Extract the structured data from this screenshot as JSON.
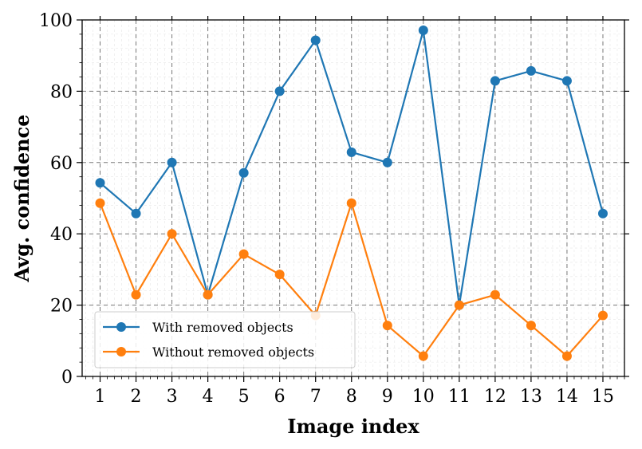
{
  "chart_data": {
    "type": "line",
    "xlabel": "Image index",
    "ylabel": "Avg. confidence",
    "x": [
      1,
      2,
      3,
      4,
      5,
      6,
      7,
      8,
      9,
      10,
      11,
      12,
      13,
      14,
      15
    ],
    "xlim": [
      0.5,
      15.6
    ],
    "ylim": [
      0,
      100
    ],
    "yticks": [
      0,
      20,
      40,
      60,
      80,
      100
    ],
    "grid": true,
    "legend_position": "bottom-left",
    "series": [
      {
        "name": "With removed objects",
        "color": "#1f77b4",
        "values": [
          54.3,
          45.7,
          60,
          22.9,
          57.1,
          80,
          94.3,
          62.9,
          60,
          97.1,
          20,
          82.9,
          85.7,
          82.9,
          45.7
        ]
      },
      {
        "name": "Without removed objects",
        "color": "#ff7f0e",
        "values": [
          48.6,
          22.9,
          40,
          22.9,
          34.3,
          28.6,
          17.1,
          48.6,
          14.3,
          5.7,
          20,
          22.9,
          14.3,
          5.7,
          17.1
        ]
      }
    ]
  }
}
